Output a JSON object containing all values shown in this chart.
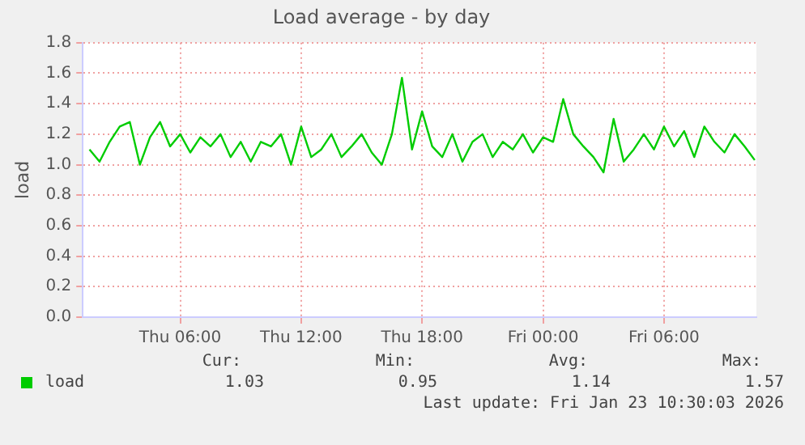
{
  "chart_data": {
    "type": "line",
    "title": "Load average - by day",
    "ylabel": "load",
    "x": [
      "2026-01-22T01:30",
      "2026-01-22T02:00",
      "2026-01-22T02:30",
      "2026-01-22T03:00",
      "2026-01-22T03:30",
      "2026-01-22T04:00",
      "2026-01-22T04:30",
      "2026-01-22T05:00",
      "2026-01-22T05:30",
      "2026-01-22T06:00",
      "2026-01-22T06:30",
      "2026-01-22T07:00",
      "2026-01-22T07:30",
      "2026-01-22T08:00",
      "2026-01-22T08:30",
      "2026-01-22T09:00",
      "2026-01-22T09:30",
      "2026-01-22T10:00",
      "2026-01-22T10:30",
      "2026-01-22T11:00",
      "2026-01-22T11:30",
      "2026-01-22T12:00",
      "2026-01-22T12:30",
      "2026-01-22T13:00",
      "2026-01-22T13:30",
      "2026-01-22T14:00",
      "2026-01-22T14:30",
      "2026-01-22T15:00",
      "2026-01-22T15:30",
      "2026-01-22T16:00",
      "2026-01-22T16:30",
      "2026-01-22T17:00",
      "2026-01-22T17:30",
      "2026-01-22T18:00",
      "2026-01-22T18:30",
      "2026-01-22T19:00",
      "2026-01-22T19:30",
      "2026-01-22T20:00",
      "2026-01-22T20:30",
      "2026-01-22T21:00",
      "2026-01-22T21:30",
      "2026-01-22T22:00",
      "2026-01-22T22:30",
      "2026-01-22T23:00",
      "2026-01-22T23:30",
      "2026-01-23T00:00",
      "2026-01-23T00:30",
      "2026-01-23T01:00",
      "2026-01-23T01:30",
      "2026-01-23T02:00",
      "2026-01-23T02:30",
      "2026-01-23T03:00",
      "2026-01-23T03:30",
      "2026-01-23T04:00",
      "2026-01-23T04:30",
      "2026-01-23T05:00",
      "2026-01-23T05:30",
      "2026-01-23T06:00",
      "2026-01-23T06:30",
      "2026-01-23T07:00",
      "2026-01-23T07:30",
      "2026-01-23T08:00",
      "2026-01-23T08:30",
      "2026-01-23T09:00",
      "2026-01-23T09:30",
      "2026-01-23T10:00",
      "2026-01-23T10:30"
    ],
    "series": [
      {
        "name": "load",
        "color": "#00cc00",
        "values": [
          1.1,
          1.02,
          1.15,
          1.25,
          1.28,
          1.0,
          1.18,
          1.28,
          1.12,
          1.2,
          1.08,
          1.18,
          1.12,
          1.2,
          1.05,
          1.15,
          1.02,
          1.15,
          1.12,
          1.2,
          1.0,
          1.25,
          1.05,
          1.1,
          1.2,
          1.05,
          1.12,
          1.2,
          1.08,
          1.0,
          1.2,
          1.57,
          1.1,
          1.35,
          1.12,
          1.05,
          1.2,
          1.02,
          1.15,
          1.2,
          1.05,
          1.15,
          1.1,
          1.2,
          1.08,
          1.18,
          1.15,
          1.43,
          1.2,
          1.12,
          1.05,
          0.95,
          1.3,
          1.02,
          1.1,
          1.2,
          1.1,
          1.25,
          1.12,
          1.22,
          1.05,
          1.25,
          1.15,
          1.08,
          1.2,
          1.12,
          1.03
        ]
      }
    ],
    "xlim": [
      "2026-01-22T01:10",
      "2026-01-23T10:35"
    ],
    "xticks": [
      {
        "value": "2026-01-22T06:00",
        "label": "Thu 06:00"
      },
      {
        "value": "2026-01-22T12:00",
        "label": "Thu 12:00"
      },
      {
        "value": "2026-01-22T18:00",
        "label": "Thu 18:00"
      },
      {
        "value": "2026-01-23T00:00",
        "label": "Fri 00:00"
      },
      {
        "value": "2026-01-23T06:00",
        "label": "Fri 06:00"
      }
    ],
    "ylim": [
      0,
      1.8
    ],
    "yticks": [
      {
        "value": 0,
        "label": "0.0"
      },
      0.2,
      0.4,
      0.6,
      0.8,
      {
        "value": 1,
        "label": "1.0"
      },
      1.2,
      1.4,
      1.6,
      1.8
    ],
    "grid": true,
    "legend": "bottom left",
    "line_style": "solid",
    "marker": "none",
    "annotations": [
      "Cur:",
      "Min:",
      "Avg:",
      "Max:",
      "1.03",
      "0.95",
      "1.14",
      "1.57",
      "Last update: Fri Jan 23 10:30:03 2026"
    ]
  }
}
